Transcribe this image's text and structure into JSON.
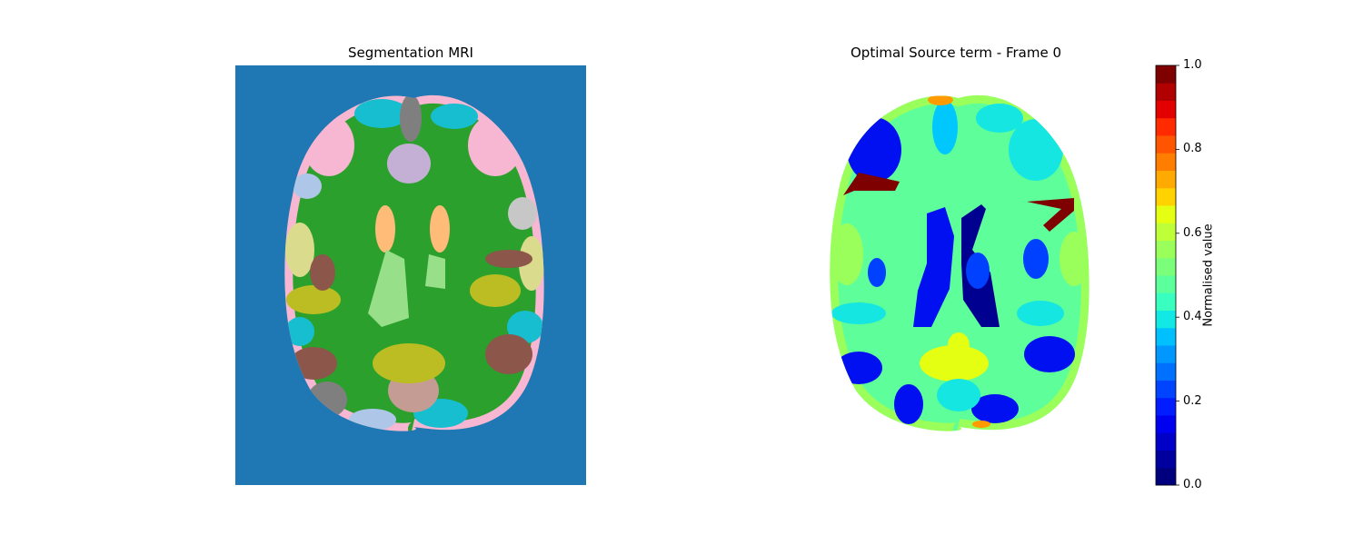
{
  "panels": {
    "left_title": "Segmentation MRI",
    "right_title": "Optimal Source term - Frame 0"
  },
  "colorbar": {
    "label": "Normalised value",
    "ticks": [
      "0.0",
      "0.2",
      "0.4",
      "0.6",
      "0.8",
      "1.0"
    ],
    "colors": [
      "#00007f",
      "#00009f",
      "#0000c8",
      "#0000f1",
      "#001cff",
      "#0044ff",
      "#0070ff",
      "#0098ff",
      "#00c0ff",
      "#12e8e4",
      "#38ffbf",
      "#5bff9b",
      "#7bff7a",
      "#9bff5b",
      "#beff38",
      "#e4ff12",
      "#ffd200",
      "#ffaa00",
      "#ff7e00",
      "#ff5500",
      "#ff2a00",
      "#e20000",
      "#b10000",
      "#7f0000"
    ]
  },
  "seg_colors": {
    "background": "#1f77b4",
    "white_matter": "#2ca02c",
    "brown": "#8c564b",
    "olive": "#bcbd22",
    "cyan": "#17becf",
    "pink": "#f7b6d2",
    "gray": "#7f7f7f",
    "light_gray": "#c7c7c7",
    "light_blue": "#aec7e8",
    "lavender": "#c5b0d5",
    "light_green": "#98df8a",
    "peach": "#ffbb78",
    "khaki": "#dbdb8d",
    "rosy": "#c49c94"
  },
  "source_colors": {
    "base": "#5eff9a",
    "lime": "#9bff5b",
    "cyan": "#16e6e1",
    "sky": "#00c8ff",
    "blue": "#0040ff",
    "deep_blue": "#0010f0",
    "navy": "#000090",
    "dark_red": "#7f0000",
    "yellow": "#e4ff12",
    "orange": "#ff9a00"
  }
}
